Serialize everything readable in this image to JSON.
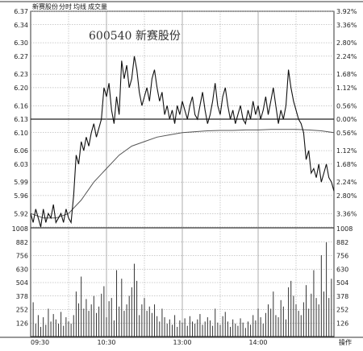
{
  "header": {
    "items": [
      "新赛股份",
      "分时",
      "均线",
      "成交量"
    ]
  },
  "menu_label": "操作",
  "colors": {
    "axis": "#333333",
    "grid": "#999999",
    "price": "#111111",
    "avg": "#555555",
    "bar": "#333333",
    "panel_bg": "#ffffff"
  },
  "chart_data": [
    {
      "type": "line",
      "annotation": "600540  新赛股份",
      "ylim": [
        5.89,
        6.37
      ],
      "prev_close": 6.13,
      "y_ticks": [
        6.37,
        6.34,
        6.3,
        6.27,
        6.23,
        6.2,
        6.16,
        6.13,
        6.1,
        6.06,
        6.03,
        5.99,
        5.96,
        5.92,
        5.89
      ],
      "y_tick_labels_left": [
        "6.37",
        "6.34",
        "6.30",
        "6.27",
        "6.23",
        "6.20",
        "6.16",
        "6.13",
        "6.10",
        "6.06",
        "6.03",
        "5.99",
        "5.96",
        "5.92",
        ""
      ],
      "y_tick_labels_right": [
        "3.92%",
        "3.36%",
        "2.80%",
        "2.24%",
        "1.68%",
        "1.12%",
        "0.56%",
        "0.00%",
        "0.56%",
        "1.12%",
        "1.68%",
        "2.24%",
        "2.80%",
        "3.36%",
        ""
      ],
      "x_ticks": [
        0,
        60,
        120,
        180,
        240
      ],
      "x_tick_labels": [
        "09:30",
        "10:30",
        "13:00",
        "14:00",
        ""
      ],
      "series": [
        {
          "role": "price",
          "x": [
            0,
            2,
            4,
            6,
            8,
            10,
            12,
            14,
            16,
            18,
            20,
            22,
            24,
            26,
            28,
            30,
            32,
            34,
            36,
            38,
            40,
            42,
            44,
            46,
            48,
            50,
            52,
            54,
            56,
            58,
            60,
            62,
            64,
            66,
            68,
            70,
            72,
            74,
            76,
            78,
            80,
            82,
            84,
            86,
            88,
            90,
            92,
            94,
            96,
            98,
            100,
            102,
            104,
            106,
            108,
            110,
            112,
            114,
            116,
            118,
            120,
            122,
            124,
            126,
            128,
            130,
            132,
            134,
            136,
            138,
            140,
            142,
            144,
            146,
            148,
            150,
            152,
            154,
            156,
            158,
            160,
            162,
            164,
            166,
            168,
            170,
            172,
            174,
            176,
            178,
            180,
            182,
            184,
            186,
            188,
            190,
            192,
            194,
            196,
            198,
            200,
            202,
            204,
            206,
            208,
            210,
            212,
            214,
            216,
            218,
            220,
            222,
            224,
            226,
            228,
            230,
            232,
            234,
            236,
            238,
            240
          ],
          "values": [
            5.92,
            5.9,
            5.93,
            5.91,
            5.89,
            5.93,
            5.9,
            5.92,
            5.91,
            5.94,
            5.9,
            5.91,
            5.92,
            5.9,
            5.93,
            5.91,
            5.9,
            5.96,
            6.05,
            6.03,
            6.08,
            6.06,
            6.09,
            6.07,
            6.1,
            6.12,
            6.09,
            6.11,
            6.13,
            6.2,
            6.18,
            6.21,
            6.15,
            6.12,
            6.18,
            6.14,
            6.26,
            6.22,
            6.25,
            6.2,
            6.22,
            6.27,
            6.24,
            6.19,
            6.16,
            6.18,
            6.2,
            6.17,
            6.22,
            6.24,
            6.2,
            6.17,
            6.19,
            6.14,
            6.16,
            6.13,
            6.15,
            6.12,
            6.16,
            6.14,
            6.17,
            6.15,
            6.13,
            6.16,
            6.18,
            6.14,
            6.13,
            6.16,
            6.19,
            6.15,
            6.12,
            6.14,
            6.17,
            6.21,
            6.16,
            6.14,
            6.18,
            6.2,
            6.16,
            6.13,
            6.15,
            6.12,
            6.14,
            6.16,
            6.13,
            6.12,
            6.15,
            6.13,
            6.17,
            6.14,
            6.16,
            6.13,
            6.15,
            6.18,
            6.14,
            6.17,
            6.2,
            6.16,
            6.12,
            6.15,
            6.13,
            6.16,
            6.24,
            6.2,
            6.17,
            6.15,
            6.13,
            6.12,
            6.1,
            6.04,
            6.06,
            6.01,
            6.02,
            6.0,
            6.03,
            5.99,
            6.01,
            6.03,
            6.0,
            5.99,
            5.97
          ]
        },
        {
          "role": "average",
          "x": [
            0,
            10,
            20,
            30,
            40,
            50,
            60,
            70,
            80,
            90,
            100,
            110,
            120,
            130,
            140,
            150,
            160,
            170,
            180,
            190,
            200,
            210,
            220,
            230,
            240
          ],
          "values": [
            5.92,
            5.91,
            5.91,
            5.92,
            5.95,
            5.99,
            6.02,
            6.05,
            6.07,
            6.08,
            6.09,
            6.095,
            6.1,
            6.102,
            6.104,
            6.105,
            6.105,
            6.106,
            6.106,
            6.107,
            6.107,
            6.107,
            6.106,
            6.104,
            6.1
          ]
        }
      ]
    },
    {
      "type": "bar",
      "ylim": [
        0,
        1008
      ],
      "y_ticks": [
        126,
        252,
        378,
        504,
        630,
        756,
        882,
        1008
      ],
      "y_tick_labels": [
        "126",
        "252",
        "378",
        "504",
        "630",
        "756",
        "882",
        "1008"
      ],
      "x_ticks": [
        0,
        60,
        120,
        180,
        240
      ],
      "x_tick_labels": [
        "09:30",
        "10:30",
        "13:00",
        "14:00",
        ""
      ],
      "x": [
        0,
        2,
        4,
        6,
        8,
        10,
        12,
        14,
        16,
        18,
        20,
        22,
        24,
        26,
        28,
        30,
        32,
        34,
        36,
        38,
        40,
        42,
        44,
        46,
        48,
        50,
        52,
        54,
        56,
        58,
        60,
        62,
        64,
        66,
        68,
        70,
        72,
        74,
        76,
        78,
        80,
        82,
        84,
        86,
        88,
        90,
        92,
        94,
        96,
        98,
        100,
        102,
        104,
        106,
        108,
        110,
        112,
        114,
        116,
        118,
        120,
        122,
        124,
        126,
        128,
        130,
        132,
        134,
        136,
        138,
        140,
        142,
        144,
        146,
        148,
        150,
        152,
        154,
        156,
        158,
        160,
        162,
        164,
        166,
        168,
        170,
        172,
        174,
        176,
        178,
        180,
        182,
        184,
        186,
        188,
        190,
        192,
        194,
        196,
        198,
        200,
        202,
        204,
        206,
        208,
        210,
        212,
        214,
        216,
        218,
        220,
        222,
        224,
        226,
        228,
        230,
        232,
        234,
        236,
        238,
        240
      ],
      "values": [
        150,
        320,
        120,
        200,
        90,
        180,
        110,
        260,
        140,
        210,
        160,
        120,
        230,
        100,
        180,
        140,
        120,
        200,
        420,
        310,
        560,
        260,
        350,
        240,
        300,
        380,
        220,
        280,
        400,
        470,
        180,
        330,
        360,
        150,
        620,
        280,
        540,
        240,
        300,
        380,
        460,
        680,
        520,
        200,
        300,
        360,
        240,
        280,
        220,
        300,
        190,
        140,
        260,
        180,
        120,
        160,
        110,
        200,
        90,
        150,
        130,
        170,
        100,
        190,
        140,
        120,
        160,
        210,
        110,
        140,
        180,
        150,
        100,
        260,
        130,
        110,
        190,
        230,
        140,
        90,
        160,
        120,
        100,
        170,
        130,
        80,
        140,
        110,
        200,
        150,
        260,
        180,
        120,
        220,
        300,
        260,
        420,
        200,
        180,
        340,
        280,
        160,
        460,
        520,
        380,
        300,
        240,
        200,
        320,
        480,
        260,
        400,
        620,
        360,
        300,
        760,
        420,
        880,
        360,
        540,
        480
      ]
    }
  ]
}
